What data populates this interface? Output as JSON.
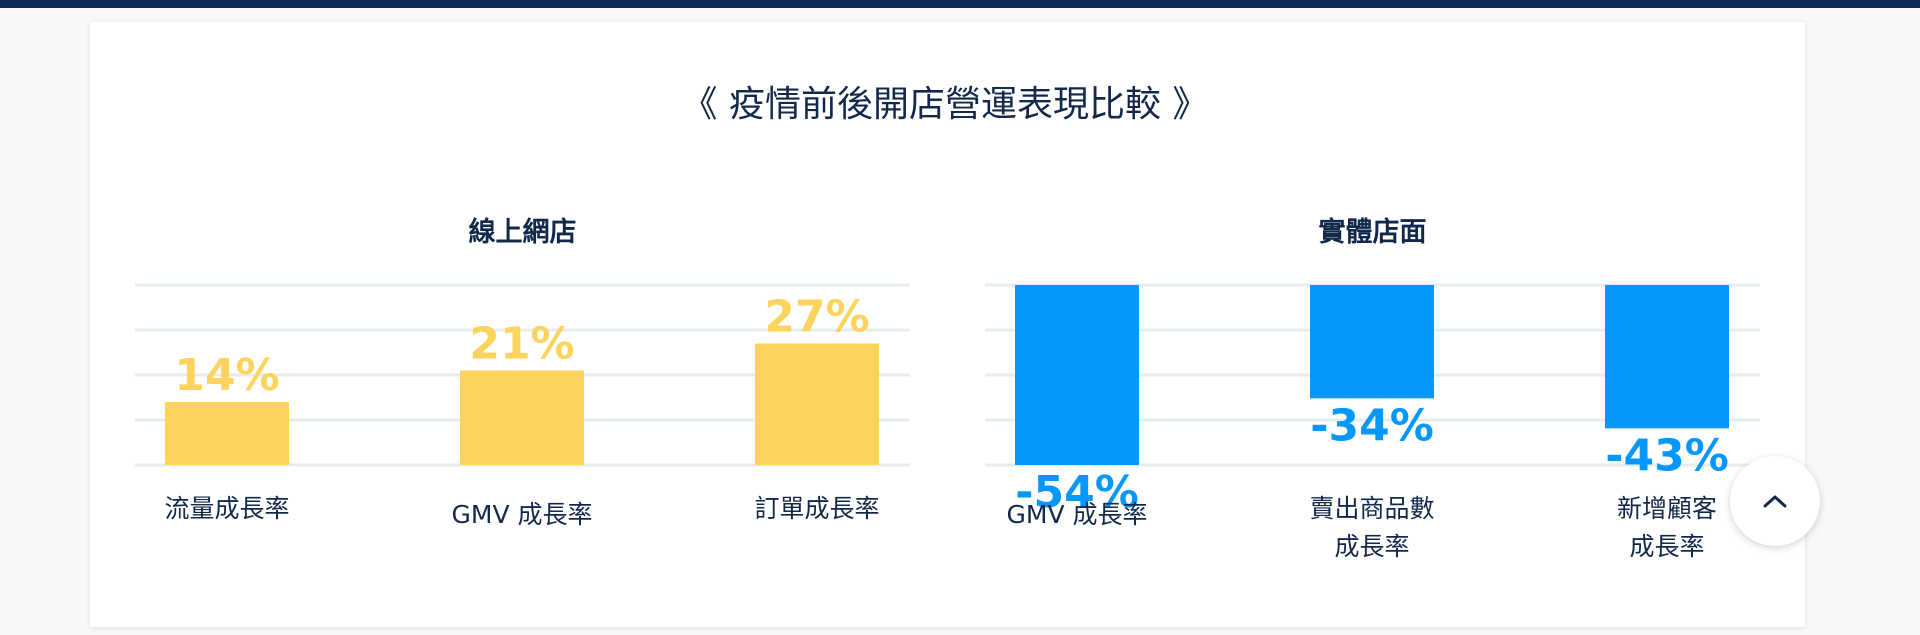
{
  "page": {
    "title": "《 疫情前後開店營運表現比較 》"
  },
  "chart_data": [
    {
      "type": "bar",
      "title": "線上網店",
      "categories": [
        "流量成長率",
        "GMV 成長率",
        "訂單成長率"
      ],
      "values": [
        14,
        21,
        27
      ],
      "value_labels": [
        "14%",
        "21%",
        "27%"
      ],
      "ylim": [
        0,
        40
      ],
      "grid": true,
      "color": "#fcd45d"
    },
    {
      "type": "bar",
      "title": "實體店面",
      "categories": [
        "GMV 成長率",
        "賣出商品數\n成長率",
        "新增顧客\n成長率"
      ],
      "values": [
        -54,
        -34,
        -43
      ],
      "value_labels": [
        "-54%",
        "-34%",
        "-43%"
      ],
      "ylim": [
        -54,
        0
      ],
      "grid": true,
      "color": "#0598fa"
    }
  ],
  "colors": {
    "accent_yellow": "#fcd45d",
    "accent_blue": "#0598fa",
    "navy": "#13294b"
  },
  "icons": {
    "scroll_top": "chevron-up-icon"
  }
}
